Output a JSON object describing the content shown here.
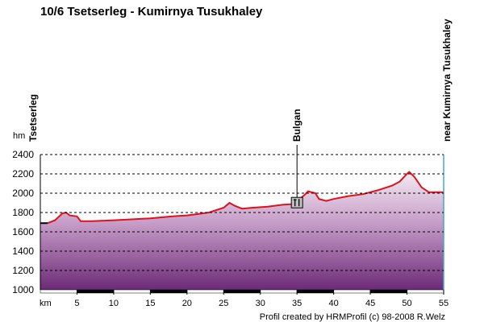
{
  "chart_data": {
    "type": "area",
    "title": "10/6 Tsetserleg - Kumirnya Tusukhaley",
    "xlabel": "km",
    "ylabel": "hm",
    "xlim": [
      0,
      55
    ],
    "ylim": [
      1000,
      2400
    ],
    "x_ticks": [
      5,
      10,
      15,
      20,
      25,
      30,
      35,
      40,
      45,
      50,
      55
    ],
    "y_ticks": [
      1000,
      1200,
      1400,
      1600,
      1800,
      2000,
      2200,
      2400
    ],
    "grid": "horizontal dashed",
    "series": [
      {
        "x": [
          0,
          1,
          2,
          3,
          3.5,
          4,
          5,
          5.5,
          7,
          10,
          15,
          18,
          20,
          22,
          23,
          25,
          25.8,
          26.5,
          27.5,
          29,
          31,
          33,
          35,
          35.5,
          36,
          36.5,
          37.5,
          38,
          39,
          40,
          42,
          44,
          46,
          48,
          49,
          50,
          50.3,
          51,
          52,
          53,
          55
        ],
        "y": [
          1690,
          1690,
          1720,
          1790,
          1800,
          1770,
          1760,
          1710,
          1710,
          1720,
          1740,
          1760,
          1770,
          1790,
          1800,
          1850,
          1900,
          1870,
          1840,
          1850,
          1860,
          1880,
          1890,
          1950,
          1980,
          2020,
          2000,
          1940,
          1920,
          1940,
          1970,
          1990,
          2030,
          2080,
          2120,
          2200,
          2220,
          2170,
          2060,
          2010,
          2010
        ]
      }
    ],
    "places": [
      {
        "name": "Tsetserleg",
        "km": 0
      },
      {
        "name": "Bulgan",
        "km": 35
      },
      {
        "name": "near Kumirnya Tusukhaley",
        "km": 55
      }
    ],
    "credit": "Profil created by HRMProfil (c) 98-2008 R.Welz",
    "colors": {
      "profile_line": "#e0101a",
      "profile_start_line": "#000000",
      "fill_top": "#f4eaf2",
      "fill_bottom": "#6b2a76",
      "grid": "#000000",
      "right_edge": "#4aa3d8"
    }
  }
}
